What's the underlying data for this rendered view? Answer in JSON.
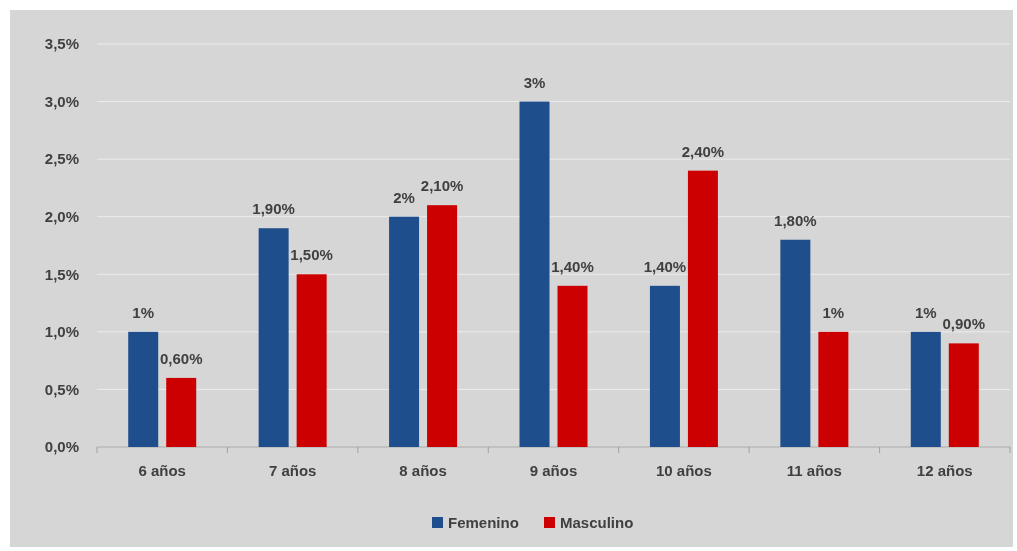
{
  "chart_data": {
    "type": "bar",
    "categories": [
      "6 años",
      "7 años",
      "8 años",
      "9 años",
      "10 años",
      "11 años",
      "12 años"
    ],
    "series": [
      {
        "name": "Femenino",
        "color": "#1f4e8c",
        "values": [
          1,
          1.9,
          2,
          3,
          1.4,
          1.8,
          1
        ],
        "value_labels": [
          "1%",
          "1,90%",
          "2%",
          "3%",
          "1,40%",
          "1,80%",
          "1%"
        ]
      },
      {
        "name": "Masculino",
        "color": "#cc0000",
        "values": [
          0.6,
          1.5,
          2.1,
          1.4,
          2.4,
          1,
          0.9
        ],
        "value_labels": [
          "0,60%",
          "1,50%",
          "2,10%",
          "1,40%",
          "2,40%",
          "1%",
          "0,90%"
        ]
      }
    ],
    "ylim": [
      0,
      3.5
    ],
    "yticks": [
      {
        "value": 0,
        "label": "0,0%"
      },
      {
        "value": 0.5,
        "label": "0,5%"
      },
      {
        "value": 1,
        "label": "1,0%"
      },
      {
        "value": 1.5,
        "label": "1,5%"
      },
      {
        "value": 2,
        "label": "2,0%"
      },
      {
        "value": 2.5,
        "label": "2,5%"
      },
      {
        "value": 3,
        "label": "3,0%"
      },
      {
        "value": 3.5,
        "label": "3,5%"
      }
    ],
    "grid": "y",
    "legend": "bottom"
  }
}
